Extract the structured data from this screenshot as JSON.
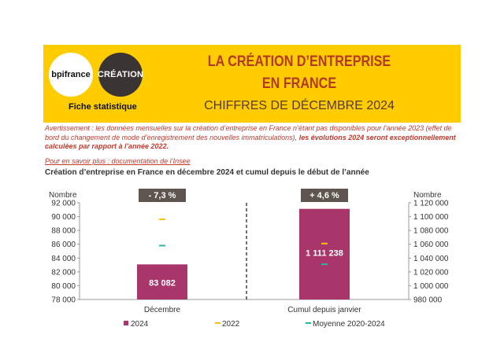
{
  "header": {
    "logo_bpi": "bpifrance",
    "logo_creation": "CRÉATION",
    "fiche": "Fiche statistique",
    "title_line1": "LA CRÉATION D’ENTREPRISE",
    "title_line2": "EN FRANCE",
    "subtitle": "CHIFFRES DE DÉCEMBRE 2024",
    "accent_color": "#ffcc00"
  },
  "warning": {
    "text": "Avertissement : les données mensuelles sur la création d’entreprise en France n’étant pas disponibles pour l’année 2023 (effet de bord du changement de mode d’enregistrement des nouvelles immatriculations),",
    "bold": "les évolutions 2024 seront exceptionnellement calculées par rapport à l’année 2022."
  },
  "link_text": "Pour en savoir plus : documentation de l’Insee",
  "chart_data": {
    "type": "bar",
    "title": "Création d’entreprise en France en décembre 2024 et cumul depuis le début de l’année",
    "left_axis": {
      "label": "Nombre",
      "ticks": [
        "92 000",
        "90 000",
        "88 000",
        "86 000",
        "84 000",
        "82 000",
        "80 000",
        "78 000"
      ],
      "ylim": [
        78000,
        92000
      ]
    },
    "right_axis": {
      "label": "Nombre",
      "ticks": [
        "1 120 000",
        "1 100 000",
        "1 080 000",
        "1 060 000",
        "1 040 000",
        "1 020 000",
        "1 000 000",
        "980 000"
      ],
      "ylim": [
        980000,
        1120000
      ]
    },
    "categories": [
      "Décembre",
      "Cumul depuis janvier"
    ],
    "series": [
      {
        "name": "2024",
        "values": [
          83082,
          1111238
        ],
        "color": "#a8366b",
        "labels": [
          "83 082",
          "1 111 238"
        ]
      },
      {
        "name": "2022",
        "values": [
          89600,
          1061000
        ],
        "color": "#ffc000"
      },
      {
        "name": "Moyenne 2020-2024",
        "values": [
          85800,
          1031000
        ],
        "color": "#2ab7a0"
      }
    ],
    "badges": [
      "- 7,3 %",
      "+ 4,6 %"
    ],
    "badge_color": "#5e5450"
  }
}
